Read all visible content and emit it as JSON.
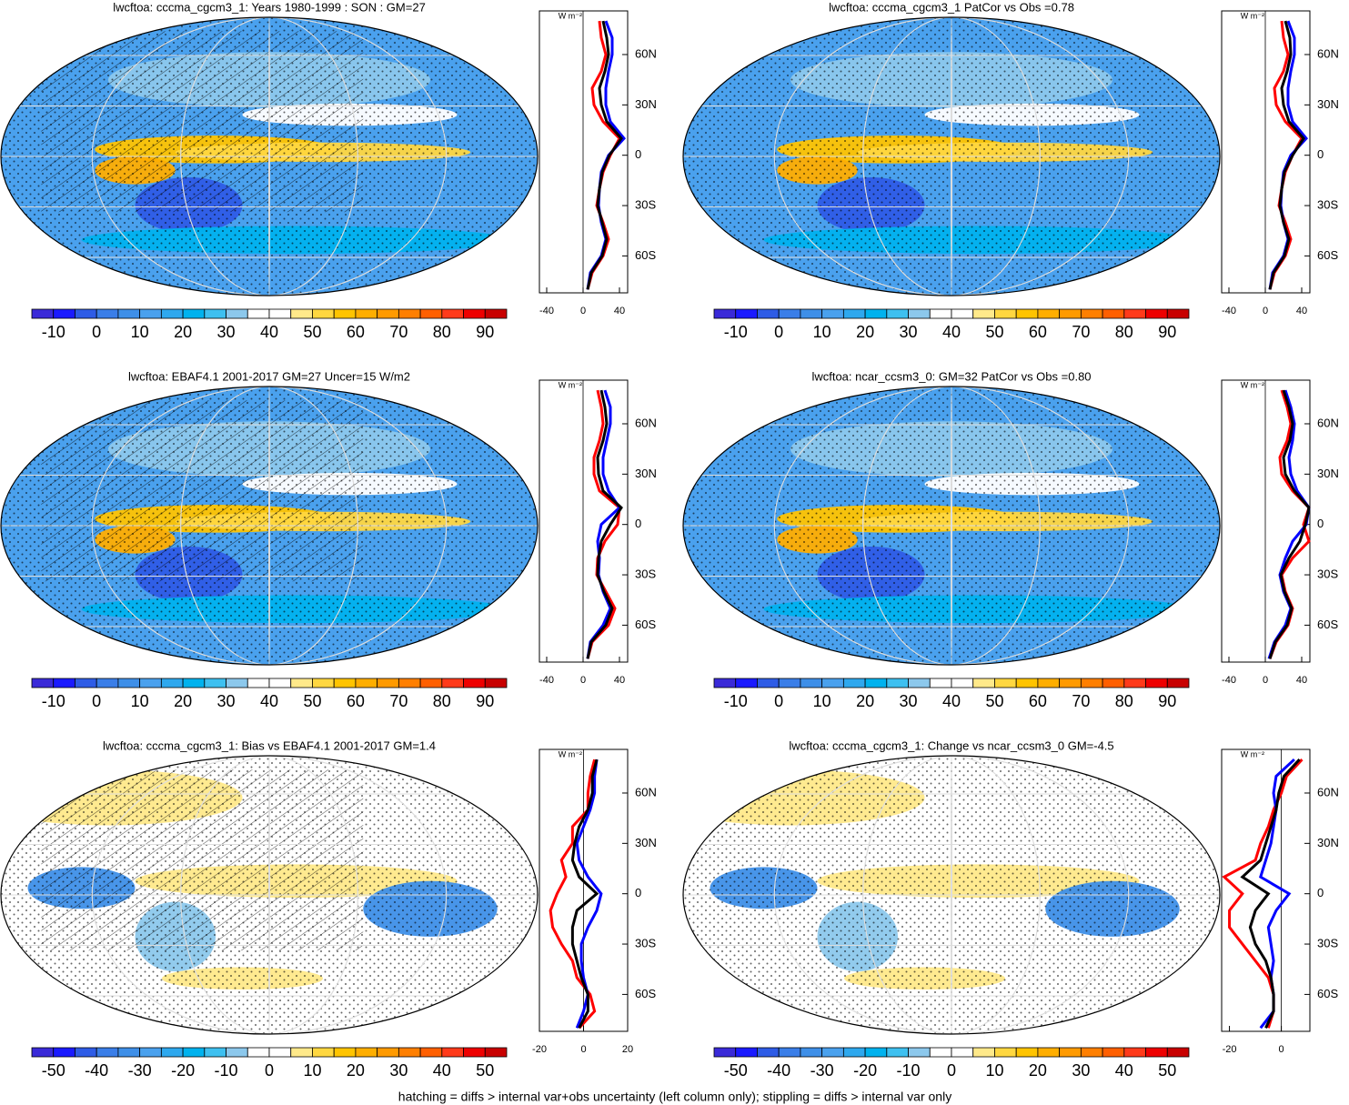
{
  "chart_data": [
    {
      "type": "map",
      "title": "lwcftoa: cccma_cgcm3_1: Years 1980-1999 : SON : GM=27",
      "colorbar": {
        "colors": [
          "#3a2ad8",
          "#1a1aff",
          "#2e5ce6",
          "#3a7ee8",
          "#3e8fe8",
          "#4aa1ee",
          "#2ea8ee",
          "#00b2ee",
          "#3ec0f0",
          "#8cc8ec",
          "#ffffff",
          "#ffffff",
          "#ffe98a",
          "#ffd740",
          "#ffc400",
          "#ffae00",
          "#ff9a00",
          "#ff7f00",
          "#ff5f00",
          "#ff3a1a",
          "#ee0000",
          "#c80000"
        ],
        "lim": [
          -15,
          95
        ],
        "ticks": [
          -10,
          0,
          10,
          20,
          30,
          40,
          50,
          60,
          70,
          80,
          90
        ]
      },
      "profile": {
        "unit": "W m⁻²",
        "y": [
          -80,
          -70,
          -60,
          -50,
          -40,
          -30,
          -20,
          -10,
          0,
          10,
          20,
          30,
          40,
          50,
          60,
          70,
          80
        ],
        "xlim": [
          -48,
          49
        ],
        "xticks": [
          -40,
          0,
          40
        ],
        "ylim": [
          -82,
          86
        ],
        "yticks": [
          {
            "value": 60,
            "label": "60N"
          },
          {
            "value": 30,
            "label": "30N"
          },
          0,
          {
            "value": -30,
            "label": "30S"
          },
          {
            "value": -60,
            "label": "60S"
          }
        ],
        "series": [
          {
            "color": "#ff0000",
            "values": [
              5,
              10,
              22,
              28,
              22,
              15,
              18,
              22,
              30,
              40,
              22,
              12,
              10,
              20,
              25,
              20,
              18
            ]
          },
          {
            "color": "#0000ff",
            "values": [
              5,
              8,
              20,
              25,
              20,
              17,
              18,
              20,
              28,
              45,
              30,
              25,
              25,
              28,
              32,
              32,
              25
            ]
          },
          {
            "color": "#000000",
            "values": [
              5,
              9,
              21,
              26,
              21,
              16,
              18,
              21,
              29,
              42,
              26,
              20,
              18,
              24,
              28,
              26,
              22
            ]
          }
        ]
      }
    },
    {
      "type": "map",
      "title": "lwcftoa: cccma_cgcm3_1 PatCor vs Obs =0.78",
      "colorbar": {
        "colors": [
          "#3a2ad8",
          "#1a1aff",
          "#2e5ce6",
          "#3a7ee8",
          "#3e8fe8",
          "#4aa1ee",
          "#2ea8ee",
          "#00b2ee",
          "#3ec0f0",
          "#8cc8ec",
          "#ffffff",
          "#ffffff",
          "#ffe98a",
          "#ffd740",
          "#ffc400",
          "#ffae00",
          "#ff9a00",
          "#ff7f00",
          "#ff5f00",
          "#ff3a1a",
          "#ee0000",
          "#c80000"
        ],
        "lim": [
          -15,
          95
        ],
        "ticks": [
          -10,
          0,
          10,
          20,
          30,
          40,
          50,
          60,
          70,
          80,
          90
        ]
      },
      "profile": {
        "unit": "W m⁻²",
        "y": [
          -80,
          -70,
          -60,
          -50,
          -40,
          -30,
          -20,
          -10,
          0,
          10,
          20,
          30,
          40,
          50,
          60,
          70,
          80
        ],
        "xlim": [
          -48,
          49
        ],
        "xticks": [
          -40,
          0,
          40
        ],
        "ylim": [
          -82,
          86
        ],
        "yticks": [
          {
            "value": 60,
            "label": "60N"
          },
          {
            "value": 30,
            "label": "30N"
          },
          0,
          {
            "value": -30,
            "label": "30S"
          },
          {
            "value": -60,
            "label": "60S"
          }
        ],
        "series": [
          {
            "color": "#ff0000",
            "values": [
              5,
              10,
              22,
              28,
              22,
              15,
              18,
              22,
              30,
              40,
              22,
              12,
              10,
              20,
              25,
              20,
              18
            ]
          },
          {
            "color": "#0000ff",
            "values": [
              5,
              8,
              20,
              25,
              20,
              17,
              18,
              20,
              28,
              45,
              30,
              25,
              25,
              28,
              32,
              32,
              25
            ]
          },
          {
            "color": "#000000",
            "values": [
              5,
              9,
              21,
              26,
              20,
              16,
              18,
              21,
              30,
              42,
              26,
              20,
              18,
              24,
              28,
              27,
              22
            ]
          }
        ]
      }
    },
    {
      "type": "map",
      "title": "lwcftoa: EBAF4.1 2001-2017 GM=27 Uncer=15 W/m2",
      "colorbar": {
        "colors": [
          "#3a2ad8",
          "#1a1aff",
          "#2e5ce6",
          "#3a7ee8",
          "#3e8fe8",
          "#4aa1ee",
          "#2ea8ee",
          "#00b2ee",
          "#3ec0f0",
          "#8cc8ec",
          "#ffffff",
          "#ffffff",
          "#ffe98a",
          "#ffd740",
          "#ffc400",
          "#ffae00",
          "#ff9a00",
          "#ff7f00",
          "#ff5f00",
          "#ff3a1a",
          "#ee0000",
          "#c80000"
        ],
        "lim": [
          -15,
          95
        ],
        "ticks": [
          -10,
          0,
          10,
          20,
          30,
          40,
          50,
          60,
          70,
          80,
          90
        ]
      },
      "profile": {
        "unit": "W m⁻²",
        "y": [
          -80,
          -70,
          -60,
          -50,
          -40,
          -30,
          -20,
          -10,
          0,
          10,
          20,
          30,
          40,
          50,
          60,
          70,
          80
        ],
        "xlim": [
          -48,
          49
        ],
        "xticks": [
          -40,
          0,
          40
        ],
        "ylim": [
          -82,
          86
        ],
        "yticks": [
          {
            "value": 60,
            "label": "60N"
          },
          {
            "value": 30,
            "label": "30N"
          },
          0,
          {
            "value": -30,
            "label": "30S"
          },
          {
            "value": -60,
            "label": "60S"
          }
        ],
        "series": [
          {
            "color": "#ff0000",
            "values": [
              5,
              10,
              28,
              35,
              25,
              15,
              16,
              24,
              38,
              40,
              18,
              12,
              12,
              18,
              22,
              20,
              16
            ]
          },
          {
            "color": "#0000ff",
            "values": [
              5,
              8,
              22,
              30,
              22,
              17,
              18,
              16,
              20,
              40,
              28,
              22,
              22,
              26,
              30,
              30,
              24
            ]
          },
          {
            "color": "#000000",
            "values": [
              5,
              9,
              25,
              32,
              23,
              16,
              17,
              20,
              30,
              42,
              22,
              17,
              16,
              22,
              26,
              24,
              20
            ]
          }
        ]
      }
    },
    {
      "type": "map",
      "title": "lwcftoa: ncar_ccsm3_0: GM=32 PatCor vs Obs =0.80",
      "colorbar": {
        "colors": [
          "#3a2ad8",
          "#1a1aff",
          "#2e5ce6",
          "#3a7ee8",
          "#3e8fe8",
          "#4aa1ee",
          "#2ea8ee",
          "#00b2ee",
          "#3ec0f0",
          "#8cc8ec",
          "#ffffff",
          "#ffffff",
          "#ffe98a",
          "#ffd740",
          "#ffc400",
          "#ffae00",
          "#ff9a00",
          "#ff7f00",
          "#ff5f00",
          "#ff3a1a",
          "#ee0000",
          "#c80000"
        ],
        "lim": [
          -15,
          95
        ],
        "ticks": [
          -10,
          0,
          10,
          20,
          30,
          40,
          50,
          60,
          70,
          80,
          90
        ]
      },
      "profile": {
        "unit": "W m⁻²",
        "y": [
          -80,
          -70,
          -60,
          -50,
          -40,
          -30,
          -20,
          -10,
          0,
          10,
          20,
          30,
          40,
          50,
          60,
          70,
          80
        ],
        "xlim": [
          -48,
          49
        ],
        "xticks": [
          -40,
          0,
          40
        ],
        "ylim": [
          -82,
          86
        ],
        "yticks": [
          {
            "value": 60,
            "label": "60N"
          },
          {
            "value": 30,
            "label": "30N"
          },
          0,
          {
            "value": -30,
            "label": "30S"
          },
          {
            "value": -60,
            "label": "60S"
          }
        ],
        "series": [
          {
            "color": "#ff0000",
            "values": [
              5,
              12,
              25,
              30,
              22,
              18,
              30,
              48,
              42,
              48,
              30,
              18,
              16,
              24,
              28,
              24,
              18
            ]
          },
          {
            "color": "#0000ff",
            "values": [
              4,
              10,
              22,
              28,
              20,
              16,
              22,
              30,
              45,
              48,
              35,
              28,
              26,
              30,
              32,
              28,
              22
            ]
          },
          {
            "color": "#000000",
            "values": [
              5,
              11,
              24,
              29,
              21,
              17,
              26,
              38,
              44,
              48,
              32,
              22,
              20,
              27,
              30,
              26,
              20
            ]
          }
        ]
      }
    },
    {
      "type": "map",
      "title": "lwcftoa: cccma_cgcm3_1: Bias vs EBAF4.1 2001-2017  GM=1.4",
      "colorbar": {
        "colors": [
          "#3a2ad8",
          "#1a1aff",
          "#2e5ce6",
          "#3a7ee8",
          "#3e8fe8",
          "#4aa1ee",
          "#2ea8ee",
          "#00b2ee",
          "#3ec0f0",
          "#8cc8ec",
          "#ffffff",
          "#ffffff",
          "#ffe98a",
          "#ffd740",
          "#ffc400",
          "#ffae00",
          "#ff9a00",
          "#ff7f00",
          "#ff5f00",
          "#ff3a1a",
          "#ee0000",
          "#c80000"
        ],
        "lim": [
          -55,
          55
        ],
        "ticks": [
          -50,
          -40,
          -30,
          -20,
          -10,
          0,
          10,
          20,
          30,
          40,
          50
        ]
      },
      "profile": {
        "unit": "W m⁻²",
        "y": [
          -80,
          -70,
          -60,
          -50,
          -40,
          -30,
          -20,
          -10,
          0,
          10,
          20,
          30,
          40,
          50,
          60,
          70,
          80
        ],
        "xlim": [
          -20,
          20
        ],
        "xticks": [
          -20,
          0,
          20
        ],
        "ylim": [
          -82,
          86
        ],
        "yticks": [
          {
            "value": 60,
            "label": "60N"
          },
          {
            "value": 30,
            "label": "30N"
          },
          0,
          {
            "value": -30,
            "label": "30S"
          },
          {
            "value": -60,
            "label": "60S"
          }
        ],
        "series": [
          {
            "color": "#ff0000",
            "values": [
              -2,
              5,
              3,
              -3,
              -5,
              -10,
              -14,
              -15,
              -12,
              -8,
              -10,
              -5,
              -5,
              2,
              2,
              3,
              5
            ]
          },
          {
            "color": "#0000ff",
            "values": [
              -3,
              0,
              2,
              0,
              -1,
              -1,
              2,
              6,
              8,
              2,
              -2,
              -3,
              0,
              3,
              5,
              5,
              6
            ]
          },
          {
            "color": "#000000",
            "values": [
              -2,
              2,
              2,
              -1,
              -3,
              -5,
              -5,
              -3,
              6,
              -2,
              -5,
              -4,
              -2,
              2,
              4,
              4,
              6
            ]
          }
        ]
      }
    },
    {
      "type": "map",
      "title": "lwcftoa: cccma_cgcm3_1: Change vs ncar_ccsm3_0 GM=-4.5",
      "colorbar": {
        "colors": [
          "#3a2ad8",
          "#1a1aff",
          "#2e5ce6",
          "#3a7ee8",
          "#3e8fe8",
          "#4aa1ee",
          "#2ea8ee",
          "#00b2ee",
          "#3ec0f0",
          "#8cc8ec",
          "#ffffff",
          "#ffffff",
          "#ffe98a",
          "#ffd740",
          "#ffc400",
          "#ffae00",
          "#ff9a00",
          "#ff7f00",
          "#ff5f00",
          "#ff3a1a",
          "#ee0000",
          "#c80000"
        ],
        "lim": [
          -55,
          55
        ],
        "ticks": [
          -50,
          -40,
          -30,
          -20,
          -10,
          0,
          10,
          20,
          30,
          40,
          50
        ]
      },
      "profile": {
        "unit": "W m⁻²",
        "y": [
          -80,
          -70,
          -60,
          -50,
          -40,
          -30,
          -20,
          -10,
          0,
          10,
          20,
          30,
          40,
          50,
          60,
          70,
          80
        ],
        "xlim": [
          -23,
          11
        ],
        "xticks": [
          -20,
          0
        ],
        "ylim": [
          -82,
          86
        ],
        "yticks": [
          {
            "value": 60,
            "label": "60N"
          },
          {
            "value": 30,
            "label": "30N"
          },
          0,
          {
            "value": -30,
            "label": "30S"
          },
          {
            "value": -60,
            "label": "60S"
          }
        ],
        "series": [
          {
            "color": "#ff0000",
            "values": [
              -5,
              -3,
              -3,
              -5,
              -10,
              -15,
              -20,
              -20,
              -15,
              -22,
              -10,
              -8,
              -5,
              -3,
              0,
              2,
              8
            ]
          },
          {
            "color": "#0000ff",
            "values": [
              -8,
              -3,
              -3,
              -4,
              -3,
              -4,
              -5,
              -2,
              3,
              -8,
              -6,
              -4,
              -3,
              -2,
              -3,
              -2,
              5
            ]
          },
          {
            "color": "#000000",
            "values": [
              -6,
              -3,
              -3,
              -4,
              -6,
              -10,
              -12,
              -10,
              -5,
              -15,
              -8,
              -6,
              -4,
              -2,
              -1,
              1,
              7
            ]
          }
        ]
      }
    }
  ],
  "footnote": "hatching = diffs > internal var+obs uncertainty (left column only); stippling = diffs > internal var only"
}
